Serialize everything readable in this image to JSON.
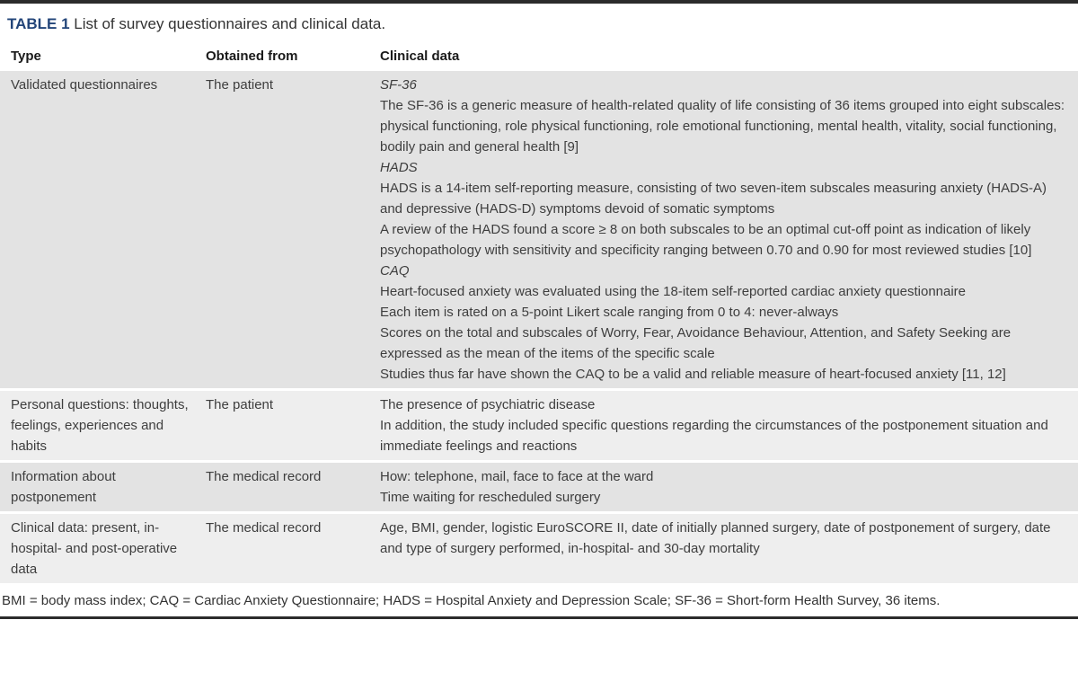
{
  "table": {
    "label": "TABLE 1",
    "title": " List of survey questionnaires and clinical data.",
    "columns": [
      "Type",
      "Obtained from",
      "Clinical data"
    ],
    "rows": [
      {
        "type": "Validated questionnaires",
        "obtained_from": "The patient",
        "clinical_data": [
          {
            "text": "SF-36",
            "italic": true
          },
          {
            "text": "The SF-36 is a generic measure of health-related quality of life consisting of 36 items grouped into eight subscales: physical functioning, role physical functioning, role emotional functioning, mental health, vitality, social functioning, bodily pain and general health [9]",
            "italic": false
          },
          {
            "text": "HADS",
            "italic": true
          },
          {
            "text": "HADS is a 14-item self-reporting measure, consisting of two seven-item subscales measuring anxiety (HADS-A) and depressive (HADS-D) symptoms devoid of somatic symptoms",
            "italic": false
          },
          {
            "text": "A review of the HADS found a score ≥ 8 on both subscales to be an optimal cut-off point as indication of likely psychopathology with sensitivity and specificity ranging between 0.70 and 0.90 for most reviewed studies [10]",
            "italic": false
          },
          {
            "text": "CAQ",
            "italic": true
          },
          {
            "text": "Heart-focused anxiety was evaluated using the 18-item self-reported cardiac anxiety questionnaire",
            "italic": false
          },
          {
            "text": "Each item is rated on a 5-point Likert scale ranging from 0 to 4: never-always",
            "italic": false
          },
          {
            "text": "Scores on the total and subscales of Worry, Fear, Avoidance Behaviour, Attention, and Safety Seeking are expressed as the mean of the items of the specific scale",
            "italic": false
          },
          {
            "text": "Studies thus far have shown the CAQ to be a valid and reliable measure of heart-focused anxiety [11, 12]",
            "italic": false
          }
        ]
      },
      {
        "type": "Personal questions: thoughts, feelings, experiences and habits",
        "obtained_from": "The patient",
        "clinical_data": [
          {
            "text": "The presence of psychiatric disease",
            "italic": false
          },
          {
            "text": "In addition, the study included specific questions regarding the circumstances of the postponement situation and immediate feelings and reactions",
            "italic": false
          }
        ]
      },
      {
        "type": "Information about postponement",
        "obtained_from": "The medical record",
        "clinical_data": [
          {
            "text": "How: telephone, mail, face to face at the ward",
            "italic": false
          },
          {
            "text": "Time waiting for rescheduled surgery",
            "italic": false
          }
        ]
      },
      {
        "type": "Clinical data: present, in-hospital- and post-operative data",
        "obtained_from": "The medical record",
        "clinical_data": [
          {
            "text": "Age, BMI, gender, logistic EuroSCORE II, date of initially planned surgery, date of postponement of surgery, date and type of surgery performed, in-hospital- and 30-day mortality",
            "italic": false
          }
        ]
      }
    ],
    "footnote": "BMI = body mass index; CAQ = Cardiac Anxiety Questionnaire; HADS = Hospital Anxiety and Depression Scale; SF-36 = Short-form Health Survey, 36 items."
  },
  "colors": {
    "accent_label": "#234579",
    "row_shade_dark": "#e3e3e3",
    "row_shade_light": "#eeeeee",
    "rule": "#2b2b2b"
  }
}
